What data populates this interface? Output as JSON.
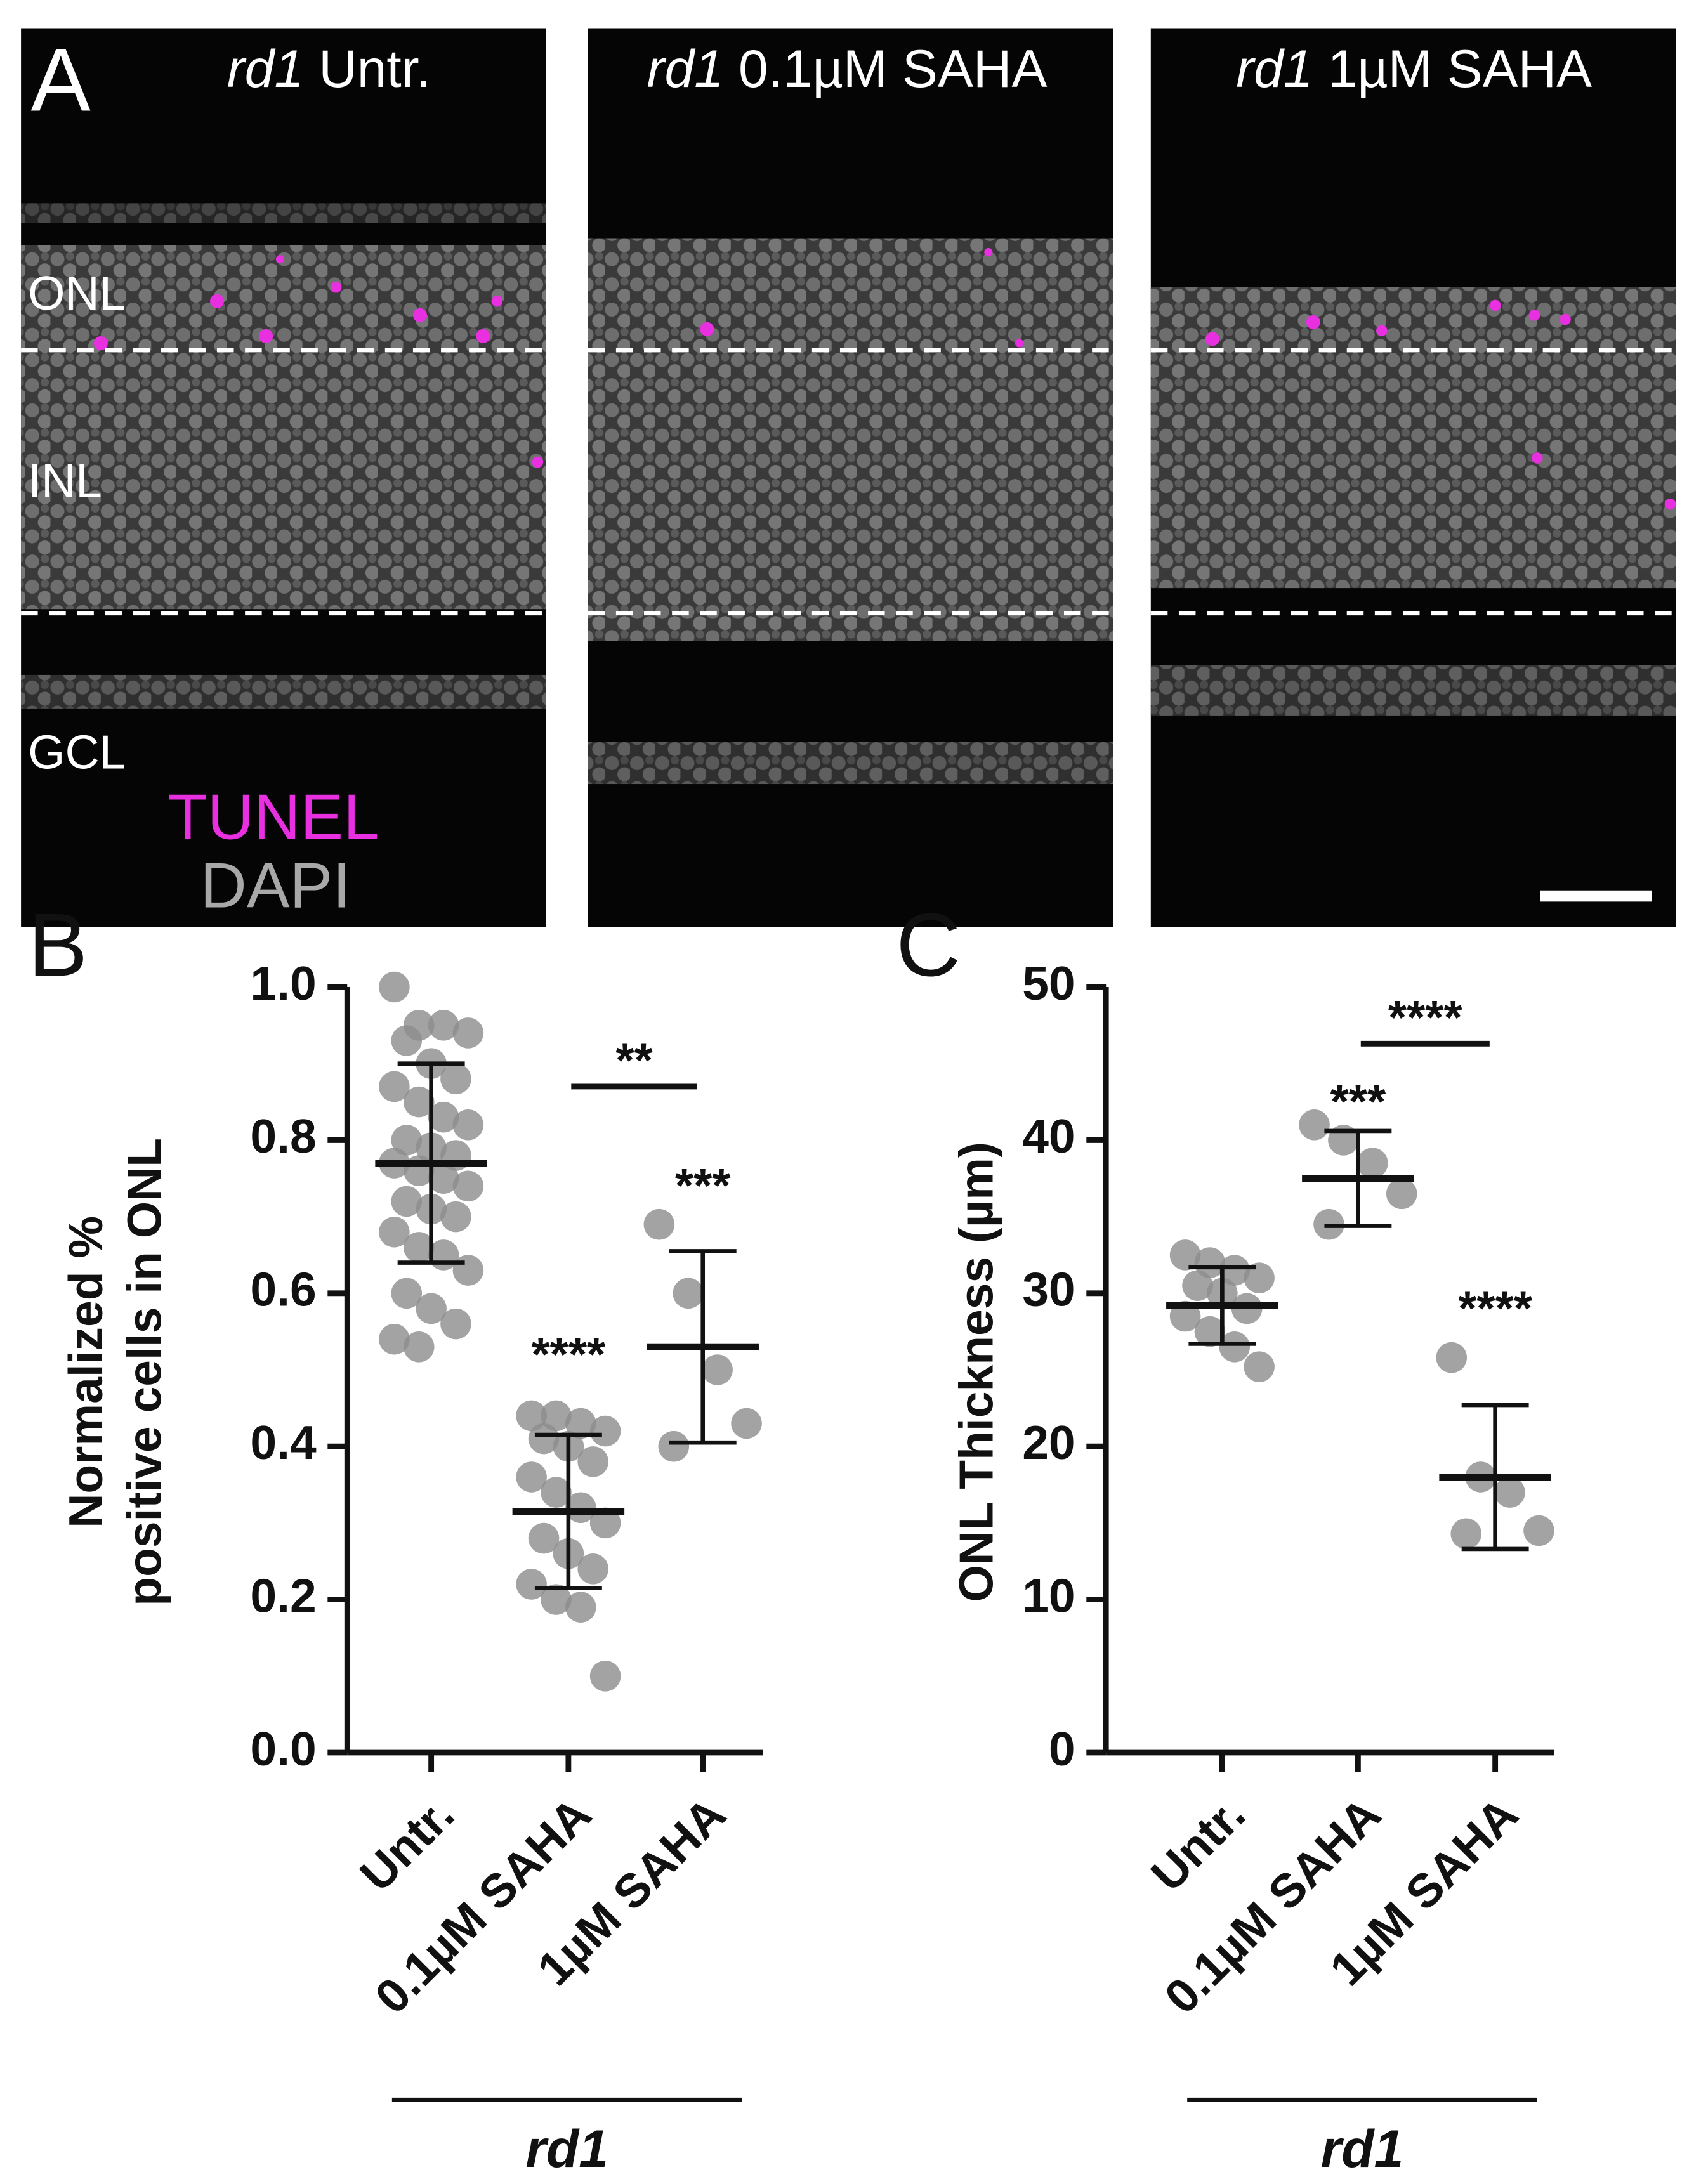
{
  "panel_a": {
    "letter": "A",
    "images": [
      {
        "italic": "rd1",
        "title": "Untr."
      },
      {
        "italic": "rd1",
        "title": "0.1µM SAHA"
      },
      {
        "italic": "rd1",
        "title": "1µM SAHA"
      }
    ],
    "layers": [
      "ONL",
      "INL",
      "GCL"
    ],
    "legend": [
      {
        "text": "TUNEL",
        "color": "#e830e0"
      },
      {
        "text": "DAPI",
        "color": "#a8a8a8"
      }
    ]
  },
  "chart_data": [
    {
      "type": "dot",
      "letter": "B",
      "ylabel": [
        "Normalized %",
        "positive cells in ONL"
      ],
      "categories": [
        "Untr.",
        "0.1µM SAHA",
        "1µM SAHA"
      ],
      "group_label": "rd1",
      "color": "#8c8c8c",
      "points": [
        [
          1.0,
          0.95,
          0.95,
          0.94,
          0.93,
          0.9,
          0.88,
          0.87,
          0.85,
          0.83,
          0.82,
          0.8,
          0.79,
          0.78,
          0.77,
          0.76,
          0.75,
          0.74,
          0.72,
          0.71,
          0.7,
          0.68,
          0.66,
          0.65,
          0.63,
          0.6,
          0.58,
          0.56,
          0.54,
          0.53
        ],
        [
          0.44,
          0.44,
          0.43,
          0.42,
          0.41,
          0.4,
          0.38,
          0.36,
          0.34,
          0.32,
          0.3,
          0.28,
          0.26,
          0.24,
          0.22,
          0.2,
          0.19,
          0.1
        ],
        [
          0.69,
          0.6,
          0.5,
          0.43,
          0.4
        ]
      ],
      "means": [
        0.77,
        0.315,
        0.53
      ],
      "sds": [
        0.13,
        0.1,
        0.125
      ],
      "ylim": [
        0,
        1.0
      ],
      "yticks": [
        {
          "value": 0,
          "label": "0.0"
        },
        0.2,
        0.4,
        0.6,
        0.8,
        {
          "value": 1,
          "label": "1.0"
        }
      ],
      "annotations": [
        {
          "text": "****",
          "x": 1,
          "y": 0.53
        },
        {
          "text": "***",
          "x": 2,
          "y": 0.75
        }
      ],
      "brackets": [
        {
          "text": "**",
          "from": 1,
          "to": 2,
          "y": 0.87
        }
      ]
    },
    {
      "type": "dot",
      "letter": "C",
      "ylabel": [
        "ONL Thickness  (µm)"
      ],
      "categories": [
        "Untr.",
        "0.1µM SAHA",
        "1µM SAHA"
      ],
      "group_label": "rd1",
      "color": "#8c8c8c",
      "points": [
        [
          32.5,
          32,
          31.5,
          31,
          30.5,
          30,
          29,
          28.5,
          27.5,
          26.5,
          25.2
        ],
        [
          41,
          40,
          38.5,
          36.5,
          34.5
        ],
        [
          25.8,
          18,
          17,
          14.5,
          14.3
        ]
      ],
      "means": [
        29.2,
        37.5,
        18
      ],
      "sds": [
        2.5,
        3.1,
        4.7
      ],
      "ylim": [
        0,
        50
      ],
      "yticks": [
        0,
        10,
        20,
        30,
        40,
        50
      ],
      "annotations": [
        {
          "text": "***",
          "x": 1,
          "y": 43
        },
        {
          "text": "****",
          "x": 2,
          "y": 29.5
        }
      ],
      "brackets": [
        {
          "text": "****",
          "from": 1,
          "to": 2,
          "y": 46.3
        }
      ]
    }
  ]
}
